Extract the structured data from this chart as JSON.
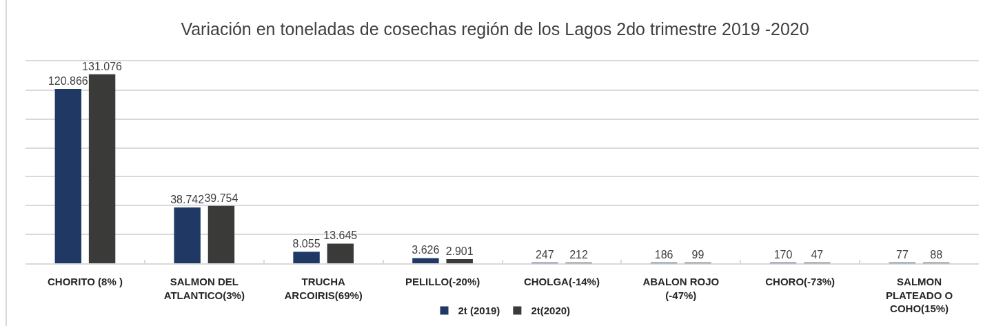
{
  "chart_data": {
    "type": "bar",
    "title": "Variación en toneladas de cosechas región de los Lagos 2do trimestre 2019 -2020",
    "categories": [
      "CHORITO (8% )",
      "SALMON DEL ATLANTICO(3%)",
      "TRUCHA ARCOIRIS(69%)",
      "PELILLO(-20%)",
      "CHOLGA(-14%)",
      "ABALON ROJO (-47%)",
      "CHORO(-73%)",
      "SALMON PLATEADO O COHO(15%)"
    ],
    "series": [
      {
        "name": "2t (2019)",
        "color": "#203864",
        "values": [
          120866,
          38742,
          8055,
          3626,
          247,
          186,
          170,
          77
        ],
        "value_labels": [
          "120.866",
          "38.742",
          "8.055",
          "3.626",
          "247",
          "186",
          "170",
          "77"
        ]
      },
      {
        "name": "2t(2020)",
        "color": "#3a3a38",
        "values": [
          131076,
          39754,
          13645,
          2901,
          212,
          99,
          47,
          88
        ],
        "value_labels": [
          "131.076",
          "39.754",
          "13.645",
          "2.901",
          "212",
          "99",
          "47",
          "88"
        ]
      }
    ],
    "ylim": [
      0,
      140000
    ],
    "yticks": [
      {
        "value": 0,
        "label": null
      },
      {
        "value": 20000,
        "label": null
      },
      {
        "value": 40000,
        "label": null
      },
      {
        "value": 60000,
        "label": null
      },
      {
        "value": 80000,
        "label": null
      },
      {
        "value": 100000,
        "label": null
      },
      {
        "value": 120000,
        "label": null
      },
      {
        "value": 140000,
        "label": null
      }
    ],
    "grid": "y",
    "legend": "bottom",
    "tick_labels": "x"
  }
}
